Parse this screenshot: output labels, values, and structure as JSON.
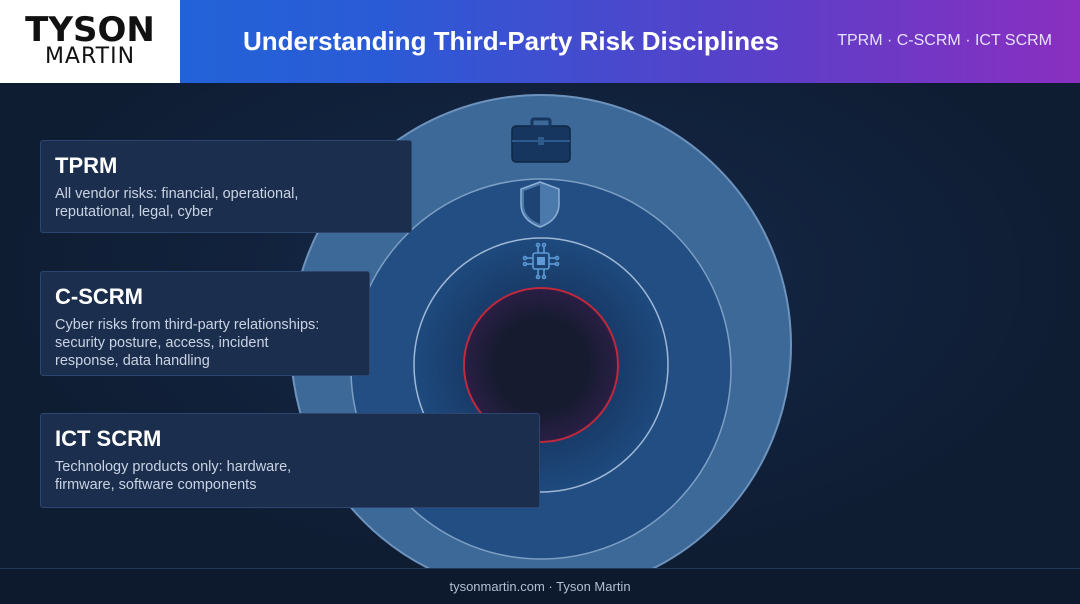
{
  "brand": {
    "line1": "TYSON",
    "line2": "MARTIN"
  },
  "header": {
    "title": "Understanding Third-Party Risk Disciplines",
    "tags": "TPRM · C-SCRM · ICT SCRM"
  },
  "cards": [
    {
      "title": "TPRM",
      "description": "All vendor risks: financial, operational, reputational, legal, cyber",
      "icon": "briefcase-icon"
    },
    {
      "title": "C-SCRM",
      "description": "Cyber risks from third-party relationships: security posture, access, incident response, data handling",
      "icon": "shield-icon"
    },
    {
      "title": "ICT SCRM",
      "description": "Technology products only: hardware, firmware, software components",
      "icon": "chip-icon"
    }
  ],
  "colors": {
    "outer_ring": "#3d6999",
    "middle_ring": "#224e83",
    "inner_ring": "#1b4576",
    "core": "#161b30",
    "core_stroke": "#c0283c"
  },
  "footer": {
    "text": "tysonmartin.com · Tyson Martin"
  }
}
